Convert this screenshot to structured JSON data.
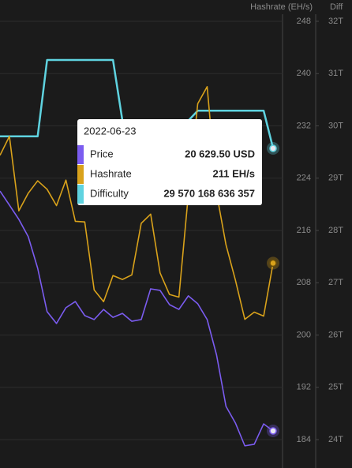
{
  "chart_data": {
    "type": "line",
    "ylabel": "Hashrate (EH/s)",
    "y2label": "Diff",
    "ylim": [
      184,
      248
    ],
    "yticks": [
      184,
      192,
      200,
      208,
      216,
      224,
      232,
      240,
      248
    ],
    "y2lim": [
      24,
      32
    ],
    "y2ticks": [
      {
        "value": 24,
        "label": "24T"
      },
      {
        "value": 25,
        "label": "25T"
      },
      {
        "value": 26,
        "label": "26T"
      },
      {
        "value": 27,
        "label": "27T"
      },
      {
        "value": 28,
        "label": "28T"
      },
      {
        "value": 29,
        "label": "29T"
      },
      {
        "value": 30,
        "label": "30T"
      },
      {
        "value": 31,
        "label": "31T"
      },
      {
        "value": 32,
        "label": "32T"
      }
    ],
    "y3lim": [
      20233.5,
      39313.5
    ],
    "grid": true,
    "series": [
      {
        "name": "Price",
        "color": "#7b5cf0",
        "axis": "y3",
        "values": [
          31570,
          30930,
          30280,
          29490,
          28050,
          26070,
          25530,
          26250,
          26530,
          25890,
          25710,
          26170,
          25810,
          25990,
          25630,
          25710,
          27110,
          27040,
          26390,
          26170,
          26790,
          26430,
          25710,
          24090,
          21750,
          20990,
          19950,
          20020,
          20950,
          20629.5
        ]
      },
      {
        "name": "Hashrate",
        "color": "#d9a21b",
        "axis": "y",
        "values": [
          227.5,
          230.4,
          219.0,
          221.7,
          223.6,
          222.3,
          219.8,
          223.7,
          217.4,
          217.3,
          206.9,
          205.1,
          209.1,
          208.5,
          209.2,
          217.1,
          218.5,
          209.5,
          206.2,
          205.8,
          221.5,
          235.4,
          238.0,
          221.7,
          213.8,
          208.4,
          202.4,
          203.5,
          202.9,
          211
        ]
      },
      {
        "name": "Difficulty",
        "color": "#5fd3e0",
        "axis": "y2",
        "values": [
          29.8,
          29.8,
          29.8,
          29.8,
          29.8,
          31.26,
          31.26,
          31.26,
          31.26,
          31.26,
          31.26,
          31.26,
          31.26,
          30.1,
          30.1,
          30.1,
          30.1,
          30.1,
          30.1,
          30.1,
          30.1,
          30.29,
          30.29,
          30.29,
          30.29,
          30.29,
          30.29,
          30.29,
          30.29,
          29.57
        ]
      }
    ],
    "tooltip": {
      "date": "2022-06-23",
      "labels": [
        "20 629.50 USD",
        "211 EH/s",
        "29 570 168 636 357"
      ]
    }
  }
}
